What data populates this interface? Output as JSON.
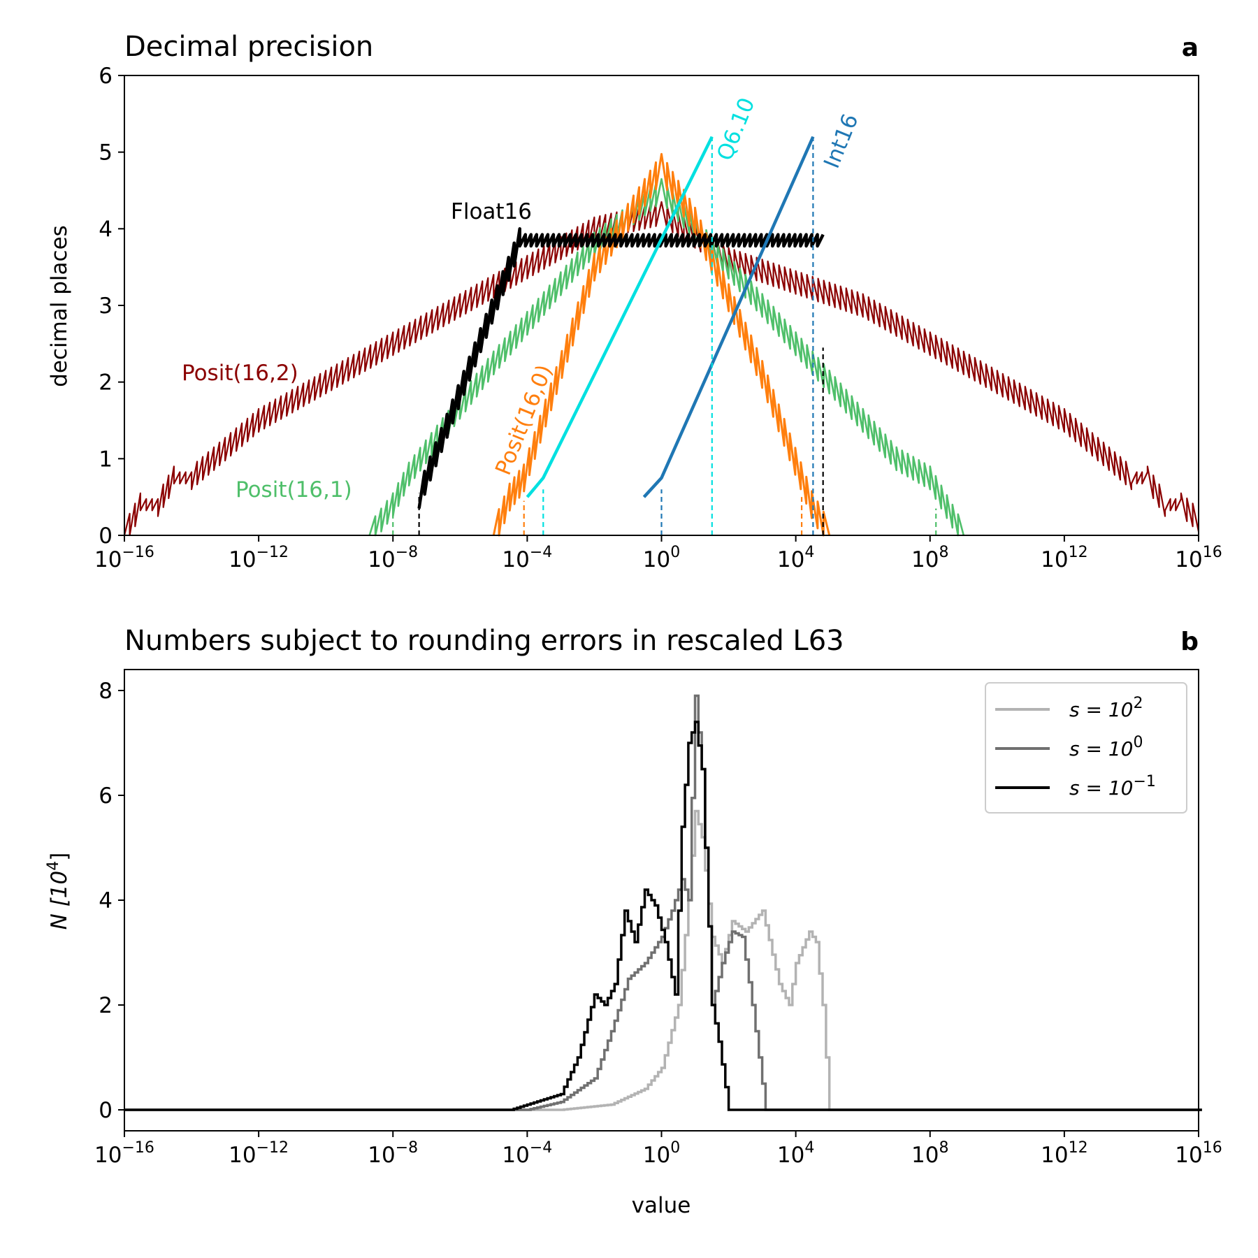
{
  "colors": {
    "posit16_2": "#8b0000",
    "posit16_1": "#4fbf6a",
    "posit16_0": "#ff7f0e",
    "float16": "#000000",
    "q6_10": "#00e0e0",
    "int16": "#1f77b4",
    "s1e2": "#b3b3b3",
    "s1e0": "#707070",
    "s1em1": "#000000"
  },
  "chart_data": [
    {
      "type": "line",
      "title": "Decimal precision",
      "panel_label": "a",
      "xlabel": "",
      "ylabel": "decimal places",
      "x_scale": "log",
      "xlim": [
        1e-16,
        1e+16
      ],
      "ylim": [
        0,
        6
      ],
      "x_ticks": [
        "10^-16",
        "10^-12",
        "10^-8",
        "10^-4",
        "10^0",
        "10^4",
        "10^8",
        "10^12",
        "10^16"
      ],
      "y_ticks": [
        "0",
        "1",
        "2",
        "3",
        "4",
        "5",
        "6"
      ],
      "series": [
        {
          "name": "Posit(16,2)",
          "color_key": "posit16_2",
          "sawtooth": 0.3,
          "points": [
            [
              1e-16,
              0
            ],
            [
              3e-16,
              0.4
            ],
            [
              1e-15,
              0.4
            ],
            [
              3e-15,
              0.75
            ],
            [
              1e-14,
              0.75
            ],
            [
              1e-12,
              1.5
            ],
            [
              1e-09,
              2.25
            ],
            [
              1e-06,
              3.0
            ],
            [
              0.0001,
              3.5
            ],
            [
              0.01,
              4.0
            ],
            [
              1,
              4.2
            ],
            [
              100.0,
              3.6
            ],
            [
              1000000.0,
              3.0
            ],
            [
              1000000000.0,
              2.25
            ],
            [
              1000000000000.0,
              1.5
            ],
            [
              100000000000000.0,
              0.75
            ],
            [
              300000000000000.0,
              0.75
            ],
            [
              1000000000000000.0,
              0.4
            ],
            [
              3000000000000000.0,
              0.4
            ],
            [
              1e+16,
              0.2
            ]
          ]
        },
        {
          "name": "Posit(16,1)",
          "color_key": "posit16_1",
          "sawtooth": 0.3,
          "points": [
            [
              2e-09,
              0
            ],
            [
              1e-08,
              0.4
            ],
            [
              3e-08,
              0.8
            ],
            [
              1e-05,
              2.25
            ],
            [
              0.01,
              3.8
            ],
            [
              1,
              4.5
            ],
            [
              100.0,
              3.5
            ],
            [
              100000.0,
              2.0
            ],
            [
              10000000.0,
              1.0
            ],
            [
              100000000.0,
              0.75
            ],
            [
              1000000000.0,
              0
            ]
          ]
        },
        {
          "name": "Posit(16,0)",
          "color_key": "posit16_0",
          "sawtooth": 0.35,
          "points": [
            [
              1e-05,
              0
            ],
            [
              3e-05,
              0.5
            ],
            [
              8e-05,
              0.75
            ],
            [
              0.01,
              3.5
            ],
            [
              1,
              4.8
            ],
            [
              10,
              4.1
            ],
            [
              1000.0,
              2.1
            ],
            [
              30000.0,
              0.4
            ],
            [
              100000.0,
              0
            ]
          ]
        },
        {
          "name": "Float16",
          "color_key": "float16",
          "sawtooth": 0.3,
          "points": [
            [
              6e-08,
              0.5
            ],
            [
              6e-05,
              3.85
            ],
            [
              65000.0,
              3.85
            ]
          ]
        },
        {
          "name": "Q6.10",
          "color_key": "q6_10",
          "sawtooth": 0,
          "points": [
            [
              0.0001,
              0.5
            ],
            [
              0.0003,
              0.75
            ],
            [
              32,
              5.2
            ]
          ]
        },
        {
          "name": "Int16",
          "color_key": "int16",
          "sawtooth": 0,
          "points": [
            [
              0.3,
              0.5
            ],
            [
              1,
              0.75
            ],
            [
              32768,
              5.2
            ]
          ]
        }
      ],
      "vlines": [
        {
          "color_key": "posit16_1",
          "x": 1e-08,
          "ymax": 0.25
        },
        {
          "color_key": "float16",
          "x": 6e-08,
          "ymax": 0.55
        },
        {
          "color_key": "posit16_0",
          "x": 8e-05,
          "ymax": 0.45
        },
        {
          "color_key": "q6_10",
          "x": 0.0003,
          "ymax": 0.6
        },
        {
          "color_key": "int16",
          "x": 1,
          "ymax": 0.6
        },
        {
          "color_key": "q6_10",
          "x": 32,
          "ymax": 5.2
        },
        {
          "color_key": "posit16_0",
          "x": 15000.0,
          "ymax": 0.5
        },
        {
          "color_key": "int16",
          "x": 32768,
          "ymax": 5.2
        },
        {
          "color_key": "float16",
          "x": 65000.0,
          "ymax": 2.45
        },
        {
          "color_key": "posit16_1",
          "x": 150000000.0,
          "ymax": 0.35
        }
      ]
    },
    {
      "type": "line",
      "title": "Numbers subject to rounding errors in rescaled L63",
      "panel_label": "b",
      "xlabel": "value",
      "ylabel": "N [10^4]",
      "x_scale": "log",
      "xlim": [
        1e-16,
        1e+16
      ],
      "ylim": [
        -0.4,
        8.4
      ],
      "x_ticks": [
        "10^-16",
        "10^-12",
        "10^-8",
        "10^-4",
        "10^0",
        "10^4",
        "10^8",
        "10^12",
        "10^16"
      ],
      "y_ticks": [
        "0",
        "2",
        "4",
        "6",
        "8"
      ],
      "legend": {
        "placement": "top-right",
        "entries": [
          {
            "base": "s = 10",
            "exp": "2",
            "color_key": "s1e2"
          },
          {
            "base": "s = 10",
            "exp": "0",
            "color_key": "s1e0"
          },
          {
            "base": "s = 10",
            "exp": "−1",
            "color_key": "s1em1"
          }
        ]
      },
      "series": [
        {
          "name": "s = 10^2",
          "color_key": "s1e2",
          "x_log10": [
            -16,
            -3,
            -1.5,
            -0.5,
            0,
            0.5,
            0.8,
            1.0,
            1.2,
            1.5,
            1.8,
            2.1,
            2.5,
            3.0,
            3.5,
            3.8,
            4.0,
            4.4,
            4.6,
            4.8,
            5.0
          ],
          "values": [
            0,
            0,
            0.1,
            0.4,
            0.8,
            2.0,
            4.0,
            5.7,
            5.2,
            3.3,
            2.8,
            3.6,
            3.4,
            3.8,
            2.4,
            2.0,
            2.8,
            3.4,
            3.2,
            2.0,
            0
          ]
        },
        {
          "name": "s = 10^0",
          "color_key": "s1e0",
          "x_log10": [
            -16,
            -4,
            -3,
            -2,
            -1.5,
            -1.0,
            -0.5,
            0,
            0.3,
            0.6,
            0.8,
            1.0,
            1.2,
            1.5,
            1.8,
            2.1,
            2.4,
            2.7,
            3.1,
            16
          ],
          "values": [
            0,
            0,
            0.15,
            0.6,
            1.5,
            2.5,
            2.8,
            3.3,
            3.8,
            4.4,
            4.0,
            7.9,
            6.5,
            2.0,
            2.8,
            3.4,
            3.3,
            2.0,
            0,
            0
          ]
        },
        {
          "name": "s = 10^-1",
          "color_key": "s1em1",
          "x_log10": [
            -16,
            -4.5,
            -3,
            -2.5,
            -2,
            -1.7,
            -1.4,
            -1.1,
            -0.8,
            -0.5,
            -0.2,
            0.1,
            0.4,
            0.6,
            0.8,
            1.0,
            1.2,
            1.5,
            1.7,
            2.0,
            16
          ],
          "values": [
            0,
            0,
            0.3,
            1.0,
            2.2,
            2.0,
            2.4,
            3.8,
            3.2,
            4.2,
            3.9,
            3.2,
            2.2,
            5.4,
            7.0,
            7.4,
            6.5,
            2.0,
            1.3,
            0,
            0
          ]
        }
      ]
    }
  ],
  "labels": {
    "a_title": "Decimal precision",
    "a_letter": "a",
    "a_ylabel": "decimal places",
    "b_title": "Numbers subject to rounding errors in rescaled L63",
    "b_letter": "b",
    "b_ylabel_base": "N [10",
    "b_ylabel_exp": "4",
    "b_ylabel_close": "]",
    "b_xlabel": "value",
    "float16": "Float16",
    "posit16_2": "Posit(16,2)",
    "posit16_1": "Posit(16,1)",
    "posit16_0": "Posit(16,0)",
    "q6_10": "Q6.10",
    "int16": "Int16"
  }
}
